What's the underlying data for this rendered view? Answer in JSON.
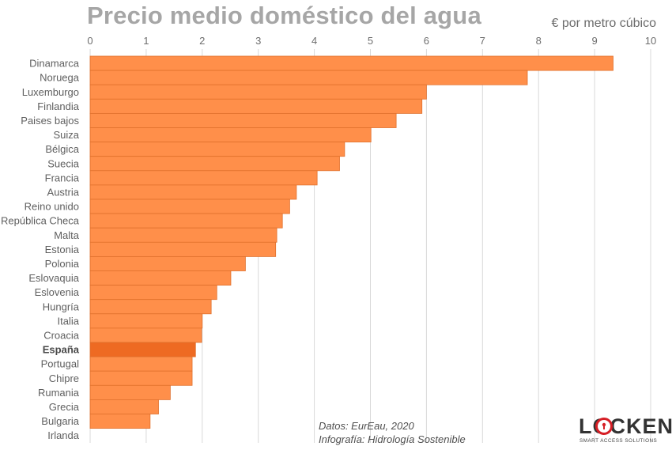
{
  "title": "Precio medio doméstico del agua",
  "unit_label": "€ por metro cúbico",
  "source": {
    "line1": "Datos: EurEau, 2020",
    "line2": "Infografía: Hidrología Sostenible"
  },
  "logo": {
    "wordmark": "LOCKEN",
    "tagline": "SMART ACCESS SOLUTIONS"
  },
  "colors": {
    "bar": "#ff8f4a",
    "bar_stroke": "#e0702c",
    "bar_highlight": "#ee6a22",
    "grid": "#d9d9d9",
    "title": "#a6a6a6",
    "logo_mark": "#d61f26"
  },
  "chart_data": {
    "type": "bar",
    "orientation": "horizontal",
    "title": "Precio medio doméstico del agua",
    "xlabel": "€ por metro cúbico",
    "ylabel": "",
    "xlim": [
      0,
      10
    ],
    "xticks": [
      0,
      1,
      2,
      3,
      4,
      5,
      6,
      7,
      8,
      9,
      10
    ],
    "grid": true,
    "axis_position": "top",
    "highlight": "España",
    "categories": [
      "Dinamarca",
      "Noruega",
      "Luxemburgo",
      "Finlandia",
      "Paises bajos",
      "Suiza",
      "Bélgica",
      "Suecia",
      "Francia",
      "Austria",
      "Reino unido",
      "República Checa",
      "Malta",
      "Estonia",
      "Polonia",
      "Eslovaquia",
      "Eslovenia",
      "Hungría",
      "Italia",
      "Croacia",
      "España",
      "Portugal",
      "Chipre",
      "Rumania",
      "Grecia",
      "Bulgaria",
      "Irlanda"
    ],
    "values": [
      9.33,
      7.8,
      6.0,
      5.92,
      5.46,
      5.01,
      4.54,
      4.45,
      4.05,
      3.68,
      3.56,
      3.43,
      3.33,
      3.31,
      2.77,
      2.51,
      2.26,
      2.16,
      2.0,
      1.99,
      1.88,
      1.82,
      1.82,
      1.43,
      1.22,
      1.07,
      0.0
    ]
  }
}
